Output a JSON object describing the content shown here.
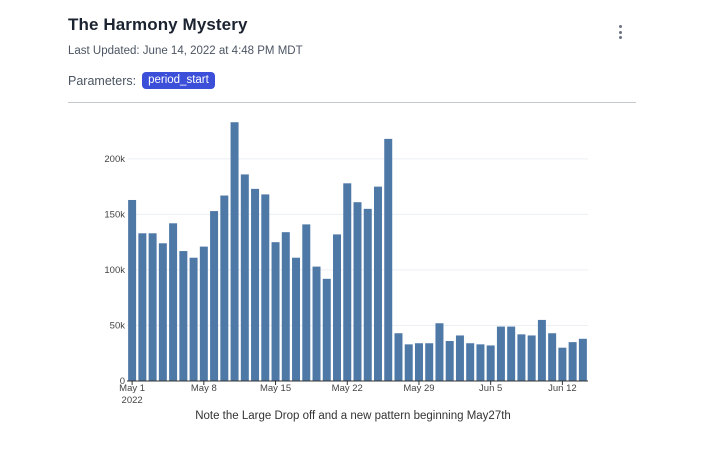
{
  "card": {
    "title": "The Harmony Mystery",
    "last_updated": "Last Updated: June 14, 2022 at 4:48 PM MDT",
    "parameters_label": "Parameters:",
    "parameter_chip": "period_start",
    "menu_icon": "more-vertical-icon",
    "accent_color": "#3b4fd8"
  },
  "chart_data": {
    "type": "bar",
    "x_start": "2022-05-01",
    "x_ticks": [
      {
        "date": "2022-05-01",
        "label": "May 1",
        "sublabel": "2022"
      },
      {
        "date": "2022-05-08",
        "label": "May 8",
        "sublabel": ""
      },
      {
        "date": "2022-05-15",
        "label": "May 15",
        "sublabel": ""
      },
      {
        "date": "2022-05-22",
        "label": "May 22",
        "sublabel": ""
      },
      {
        "date": "2022-05-29",
        "label": "May 29",
        "sublabel": ""
      },
      {
        "date": "2022-06-05",
        "label": "Jun 5",
        "sublabel": ""
      },
      {
        "date": "2022-06-12",
        "label": "Jun 12",
        "sublabel": ""
      }
    ],
    "y_ticks": [
      {
        "value": 0,
        "label": "0"
      },
      {
        "value": 50000,
        "label": "50k"
      },
      {
        "value": 100000,
        "label": "100k"
      },
      {
        "value": 150000,
        "label": "150k"
      },
      {
        "value": 200000,
        "label": "200k"
      }
    ],
    "ylim": [
      0,
      235000
    ],
    "bar_color": "#4e79a7",
    "grid": true,
    "values": [
      163000,
      133000,
      133000,
      124000,
      142000,
      117000,
      111000,
      121000,
      153000,
      167000,
      233000,
      186000,
      173000,
      168000,
      125000,
      134000,
      111000,
      141000,
      103000,
      92000,
      132000,
      178000,
      161000,
      155000,
      175000,
      218000,
      43000,
      33000,
      34000,
      34000,
      52000,
      36000,
      41000,
      34000,
      33000,
      32000,
      49000,
      49000,
      42000,
      41000,
      55000,
      43000,
      30000,
      35000,
      38000
    ],
    "caption": "Note the Large Drop off and a new pattern beginning May27th"
  }
}
